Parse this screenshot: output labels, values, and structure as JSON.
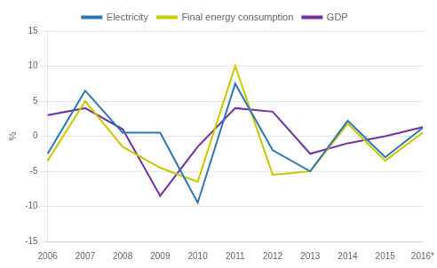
{
  "chart_data": {
    "type": "line",
    "categories": [
      "2006",
      "2007",
      "2008",
      "2009",
      "2010",
      "2011",
      "2012",
      "2013",
      "2014",
      "2015",
      "2016*"
    ],
    "series": [
      {
        "name": "Electricity",
        "color": "#2e75b6",
        "values": [
          -2.5,
          6.5,
          0.5,
          0.5,
          -9.5,
          7.5,
          -2.0,
          -5.0,
          2.2,
          -3.0,
          1.2
        ]
      },
      {
        "name": "Final energy consumption",
        "color": "#c8c800",
        "values": [
          -3.5,
          5.0,
          -1.5,
          -4.5,
          -6.5,
          10.0,
          -5.5,
          -5.0,
          1.8,
          -3.5,
          0.5
        ]
      },
      {
        "name": "GDP",
        "color": "#7030a0",
        "values": [
          3.0,
          4.0,
          1.0,
          -8.5,
          -1.5,
          4.0,
          3.5,
          -2.5,
          -1.0,
          0.0,
          1.3
        ]
      }
    ],
    "ylabel": "%",
    "ylim": [
      -15,
      15
    ],
    "yticks": [
      -15,
      -10,
      -5,
      0,
      5,
      10,
      15
    ],
    "grid": "y",
    "legend": "top"
  }
}
